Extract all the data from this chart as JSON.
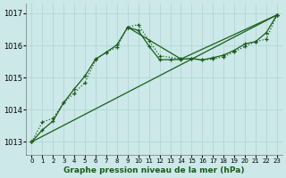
{
  "title": "Graphe pression niveau de la mer (hPa)",
  "bg_color": "#cce8e8",
  "grid_color": "#b0d8d8",
  "line_color": "#1a5c1a",
  "x_ticks": [
    0,
    1,
    2,
    3,
    4,
    5,
    6,
    7,
    8,
    9,
    10,
    11,
    12,
    13,
    14,
    15,
    16,
    17,
    18,
    19,
    20,
    21,
    22,
    23
  ],
  "ylim": [
    1012.6,
    1017.3
  ],
  "yticks": [
    1013,
    1014,
    1015,
    1016,
    1017
  ],
  "series1_x": [
    0,
    1,
    2,
    3,
    4,
    5,
    6,
    7,
    8,
    9,
    10,
    11,
    12,
    13,
    14,
    15,
    16,
    17,
    18,
    19,
    20,
    21,
    22,
    23
  ],
  "series1_y": [
    1013.0,
    1013.37,
    1013.65,
    1014.22,
    1014.65,
    1015.05,
    1015.58,
    1015.79,
    1016.02,
    1016.57,
    1016.47,
    1015.98,
    1015.56,
    1015.56,
    1015.57,
    1015.6,
    1015.55,
    1015.62,
    1015.7,
    1015.85,
    1016.05,
    1016.12,
    1016.4,
    1016.95
  ],
  "series2_x": [
    0,
    1,
    2,
    3,
    4,
    5,
    6,
    7,
    8,
    9,
    10,
    11,
    12,
    14,
    15,
    16,
    17,
    18,
    19,
    20,
    21,
    22,
    23
  ],
  "series2_y": [
    1013.0,
    1013.62,
    1013.73,
    1014.22,
    1014.52,
    1014.85,
    1015.55,
    1015.79,
    1015.95,
    1016.57,
    1016.65,
    1016.15,
    1015.68,
    1015.58,
    1015.58,
    1015.55,
    1015.58,
    1015.65,
    1015.8,
    1015.97,
    1016.12,
    1016.2,
    1016.95
  ],
  "series3_x": [
    0,
    23
  ],
  "series3_y": [
    1013.0,
    1016.95
  ],
  "series4_x": [
    9,
    14,
    23
  ],
  "series4_y": [
    1016.57,
    1015.58,
    1016.95
  ]
}
